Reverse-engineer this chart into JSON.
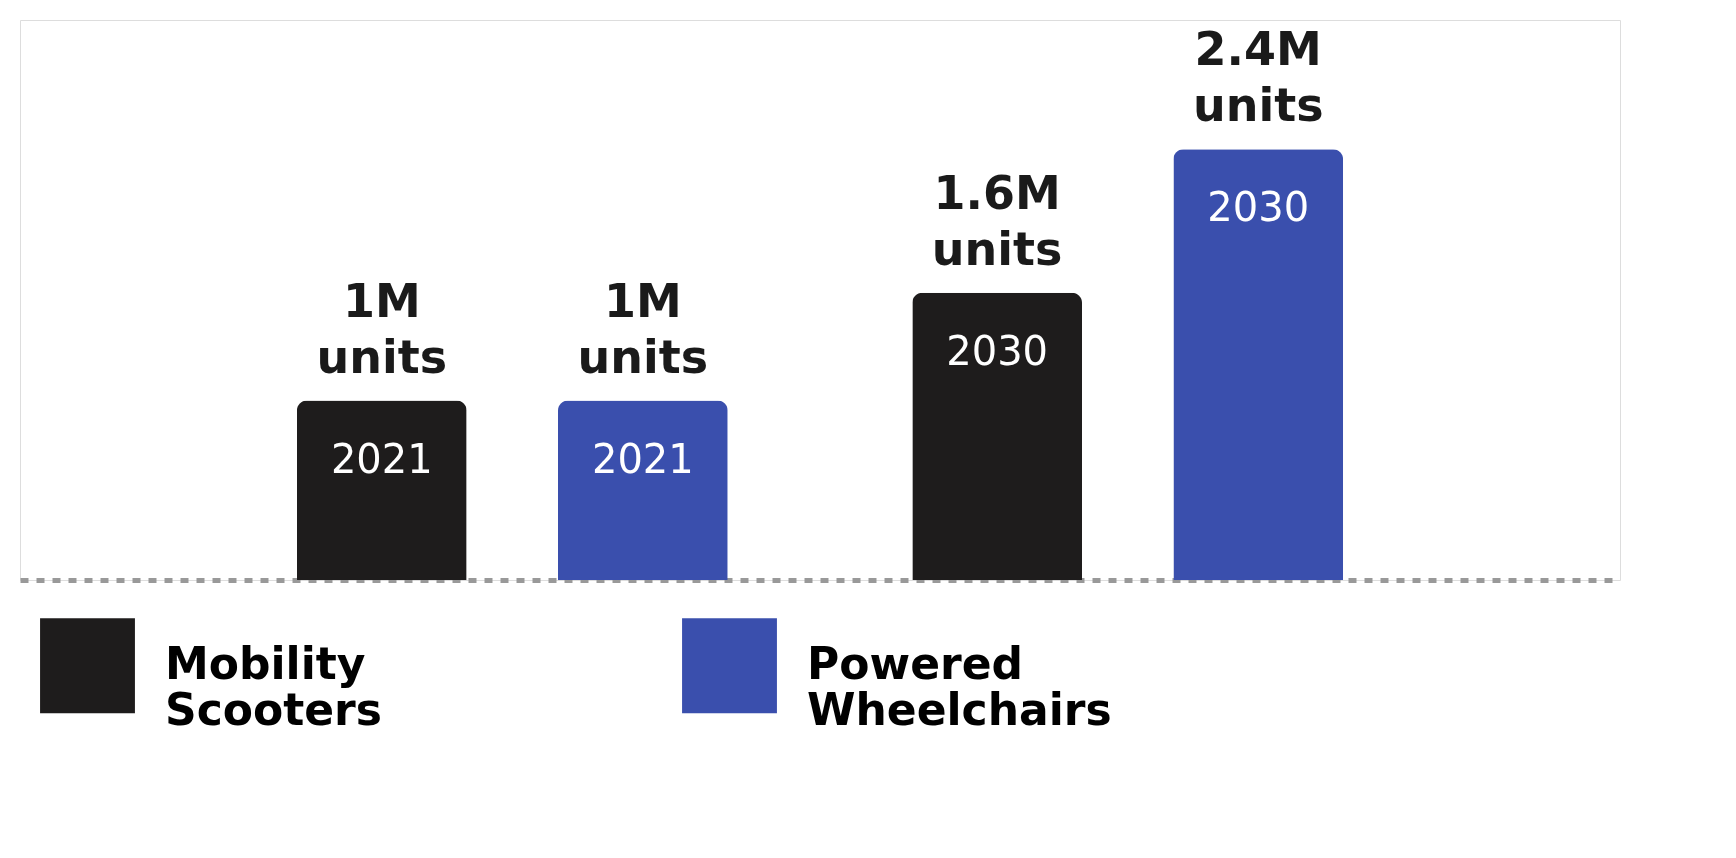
{
  "chart_data": {
    "type": "bar",
    "categories": [
      "2021",
      "2030"
    ],
    "series": [
      {
        "name": "Mobility Scooters",
        "color": "#1e1c1c",
        "values": [
          1000000,
          1600000
        ],
        "value_labels": [
          "1M units",
          "1.6M units"
        ]
      },
      {
        "name": "Powered Wheelchairs",
        "color": "#3a4fad",
        "values": [
          1000000,
          2400000
        ],
        "value_labels": [
          "1M units",
          "2.4M units"
        ]
      }
    ],
    "tick_labels": false,
    "grid": false,
    "legend": "bottom"
  }
}
